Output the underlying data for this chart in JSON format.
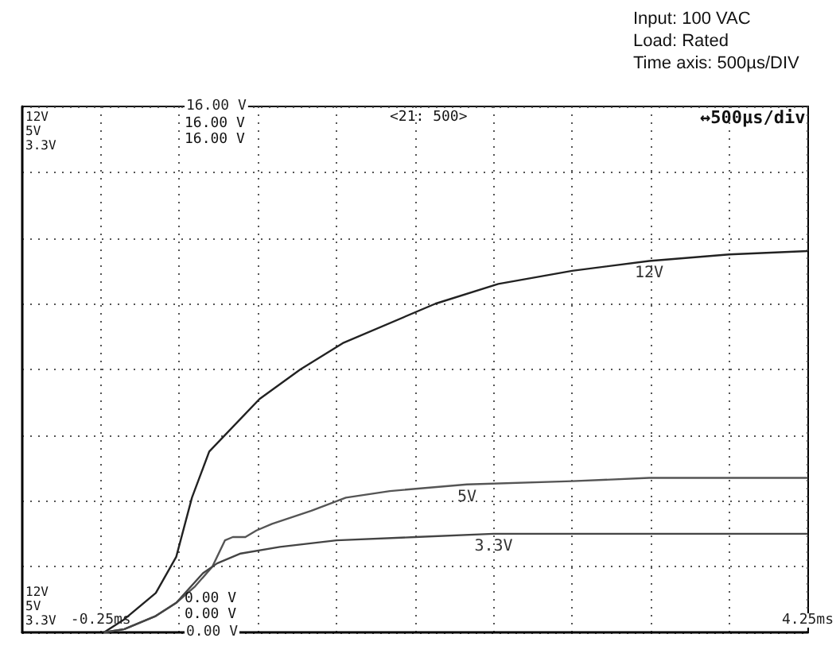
{
  "chart_data": {
    "type": "line",
    "annotations": [
      "Input: 100 VAC",
      "Load: Rated",
      "Time axis: 500µs/DIV",
      "12V\n5V\n3.3V",
      "12V\n5V\n3.3V",
      "16.00 V\n16.00 V",
      "0.00 V\n0.00 V",
      "<21: 500>",
      "↔500µs/div"
    ],
    "series": [
      {
        "name": "12V",
        "color": "#222222",
        "x": [
          -0.23,
          -0.1,
          0.1,
          0.23,
          0.33,
          0.44,
          0.76,
          1.02,
          1.29,
          1.88,
          2.28,
          2.75,
          3.24,
          3.75,
          4.25
        ],
        "values": [
          0,
          0.4,
          1.2,
          2.3,
          4.1,
          5.5,
          7.1,
          8.0,
          8.8,
          10.0,
          10.6,
          11.0,
          11.3,
          11.5,
          11.6
        ]
      },
      {
        "name": "5V",
        "color": "#555555",
        "x": [
          -0.23,
          -0.1,
          0.1,
          0.23,
          0.35,
          0.46,
          0.54,
          0.59,
          0.67,
          0.74,
          0.84,
          1.09,
          1.31,
          1.59,
          2.08,
          2.75,
          3.24,
          4.25
        ],
        "values": [
          0,
          0.1,
          0.5,
          0.9,
          1.4,
          2.0,
          2.8,
          2.9,
          2.9,
          3.1,
          3.3,
          3.7,
          4.1,
          4.3,
          4.5,
          4.6,
          4.7,
          4.7
        ]
      },
      {
        "name": "3.3V",
        "color": "#444444",
        "x": [
          -0.23,
          -0.1,
          0.1,
          0.23,
          0.4,
          0.49,
          0.64,
          0.89,
          1.25,
          1.75,
          2.25,
          3.24,
          4.25
        ],
        "values": [
          0,
          0.1,
          0.5,
          0.9,
          1.8,
          2.1,
          2.4,
          2.6,
          2.8,
          2.9,
          3.0,
          3.0,
          3.0
        ]
      }
    ],
    "xlim": [
      -0.75,
      4.25
    ],
    "xticks": [
      {
        "value": -0.25,
        "label": "-0.25ms"
      },
      {
        "value": 0.25,
        "label": null
      },
      {
        "value": 0.75,
        "label": null
      },
      {
        "value": 1.25,
        "label": null
      },
      {
        "value": 1.75,
        "label": null
      },
      {
        "value": 2.25,
        "label": null
      },
      {
        "value": 2.75,
        "label": null
      },
      {
        "value": 3.25,
        "label": null
      },
      {
        "value": 3.75,
        "label": null
      },
      {
        "value": 4.25,
        "label": "4.25ms"
      }
    ],
    "ylim": [
      0,
      16
    ],
    "yticks": [
      {
        "value": 0,
        "label": "0.00 V"
      },
      {
        "value": 2,
        "label": null
      },
      {
        "value": 4,
        "label": null
      },
      {
        "value": 6,
        "label": null
      },
      {
        "value": 8,
        "label": null
      },
      {
        "value": 10,
        "label": null
      },
      {
        "value": 12,
        "label": null
      },
      {
        "value": 14,
        "label": null
      },
      {
        "value": 16,
        "label": "16.00 V"
      }
    ],
    "grid": true,
    "legend": false,
    "marker": "none",
    "line_style": "solid"
  }
}
